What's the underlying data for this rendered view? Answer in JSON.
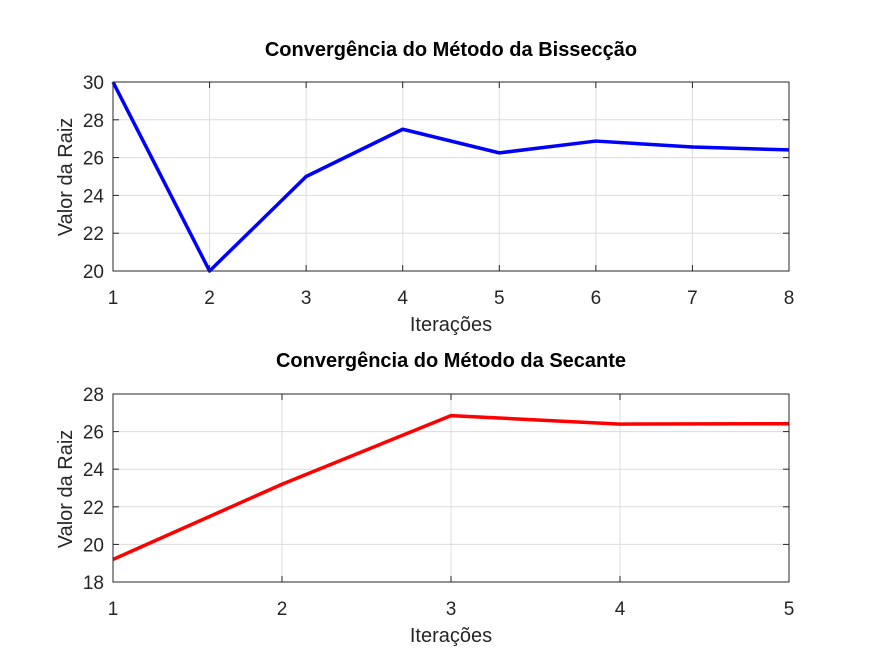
{
  "chart_data": [
    {
      "type": "line",
      "title": "Convergência do Método da Bissecção",
      "xlabel": "Iterações",
      "ylabel": "Valor da Raiz",
      "xlim": [
        1,
        8
      ],
      "ylim": [
        20,
        30
      ],
      "xticks": [
        1,
        2,
        3,
        4,
        5,
        6,
        7,
        8
      ],
      "yticks": [
        20,
        22,
        24,
        26,
        28,
        30
      ],
      "grid": true,
      "series": [
        {
          "color": "#0000ff",
          "x": [
            1,
            2,
            3,
            4,
            5,
            6,
            7,
            8
          ],
          "y": [
            30,
            20,
            25,
            27.5,
            26.25,
            26.875,
            26.5625,
            26.40625
          ]
        }
      ]
    },
    {
      "type": "line",
      "title": "Convergência do Método da Secante",
      "xlabel": "Iterações",
      "ylabel": "Valor da Raiz",
      "xlim": [
        1,
        5
      ],
      "ylim": [
        18,
        28
      ],
      "xticks": [
        1,
        2,
        3,
        4,
        5
      ],
      "yticks": [
        18,
        20,
        22,
        24,
        26,
        28
      ],
      "grid": true,
      "series": [
        {
          "color": "#ff0000",
          "x": [
            1,
            2,
            3,
            4,
            5
          ],
          "y": [
            19.2,
            23.2,
            26.85,
            26.4,
            26.42
          ]
        }
      ]
    }
  ]
}
